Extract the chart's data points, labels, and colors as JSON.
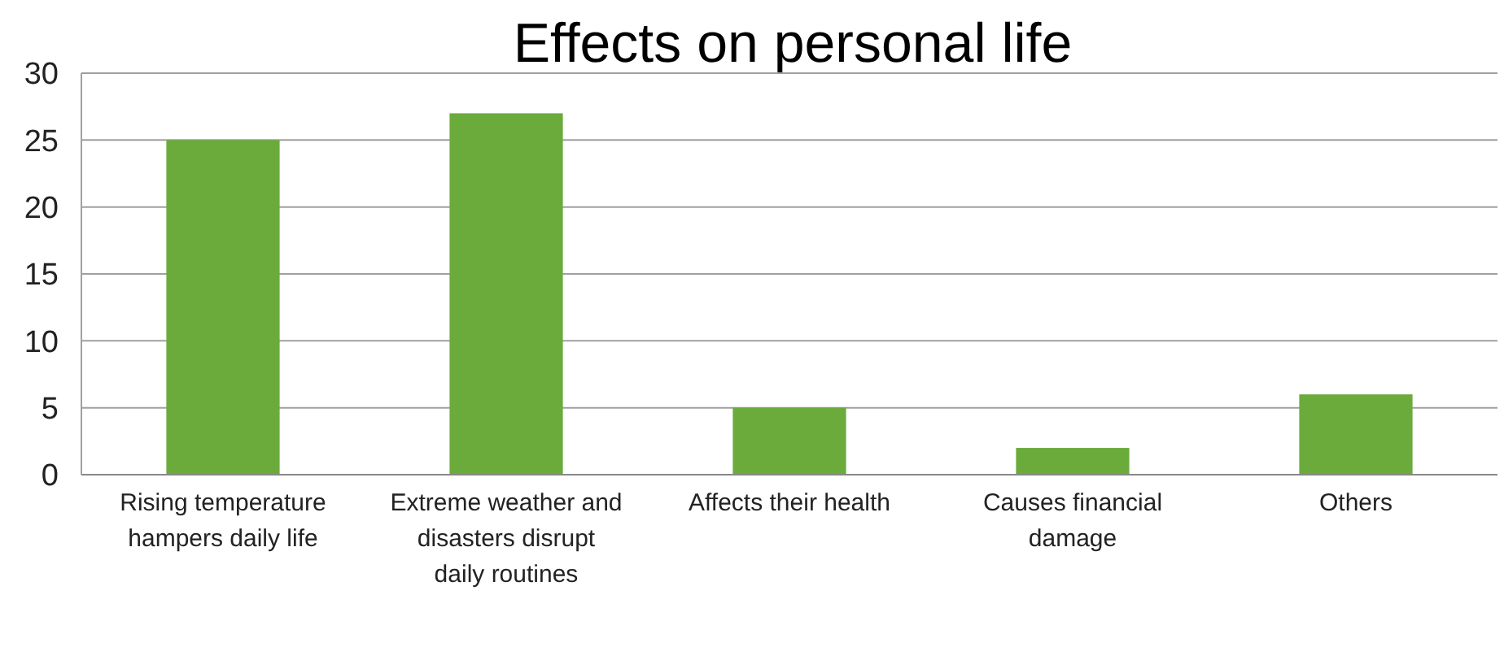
{
  "chart_data": {
    "type": "bar",
    "title": "Effects on personal life",
    "categories": [
      "Rising temperature hampers daily life",
      "Extreme weather and disasters disrupt daily routines",
      "Affects their health",
      "Causes financial damage",
      "Others"
    ],
    "values": [
      25,
      27,
      5,
      2,
      6
    ],
    "color": "#6aab3c",
    "ylim": [
      0,
      30
    ],
    "yticks": [
      0,
      5,
      10,
      15,
      20,
      25,
      30
    ],
    "grid": "y"
  }
}
